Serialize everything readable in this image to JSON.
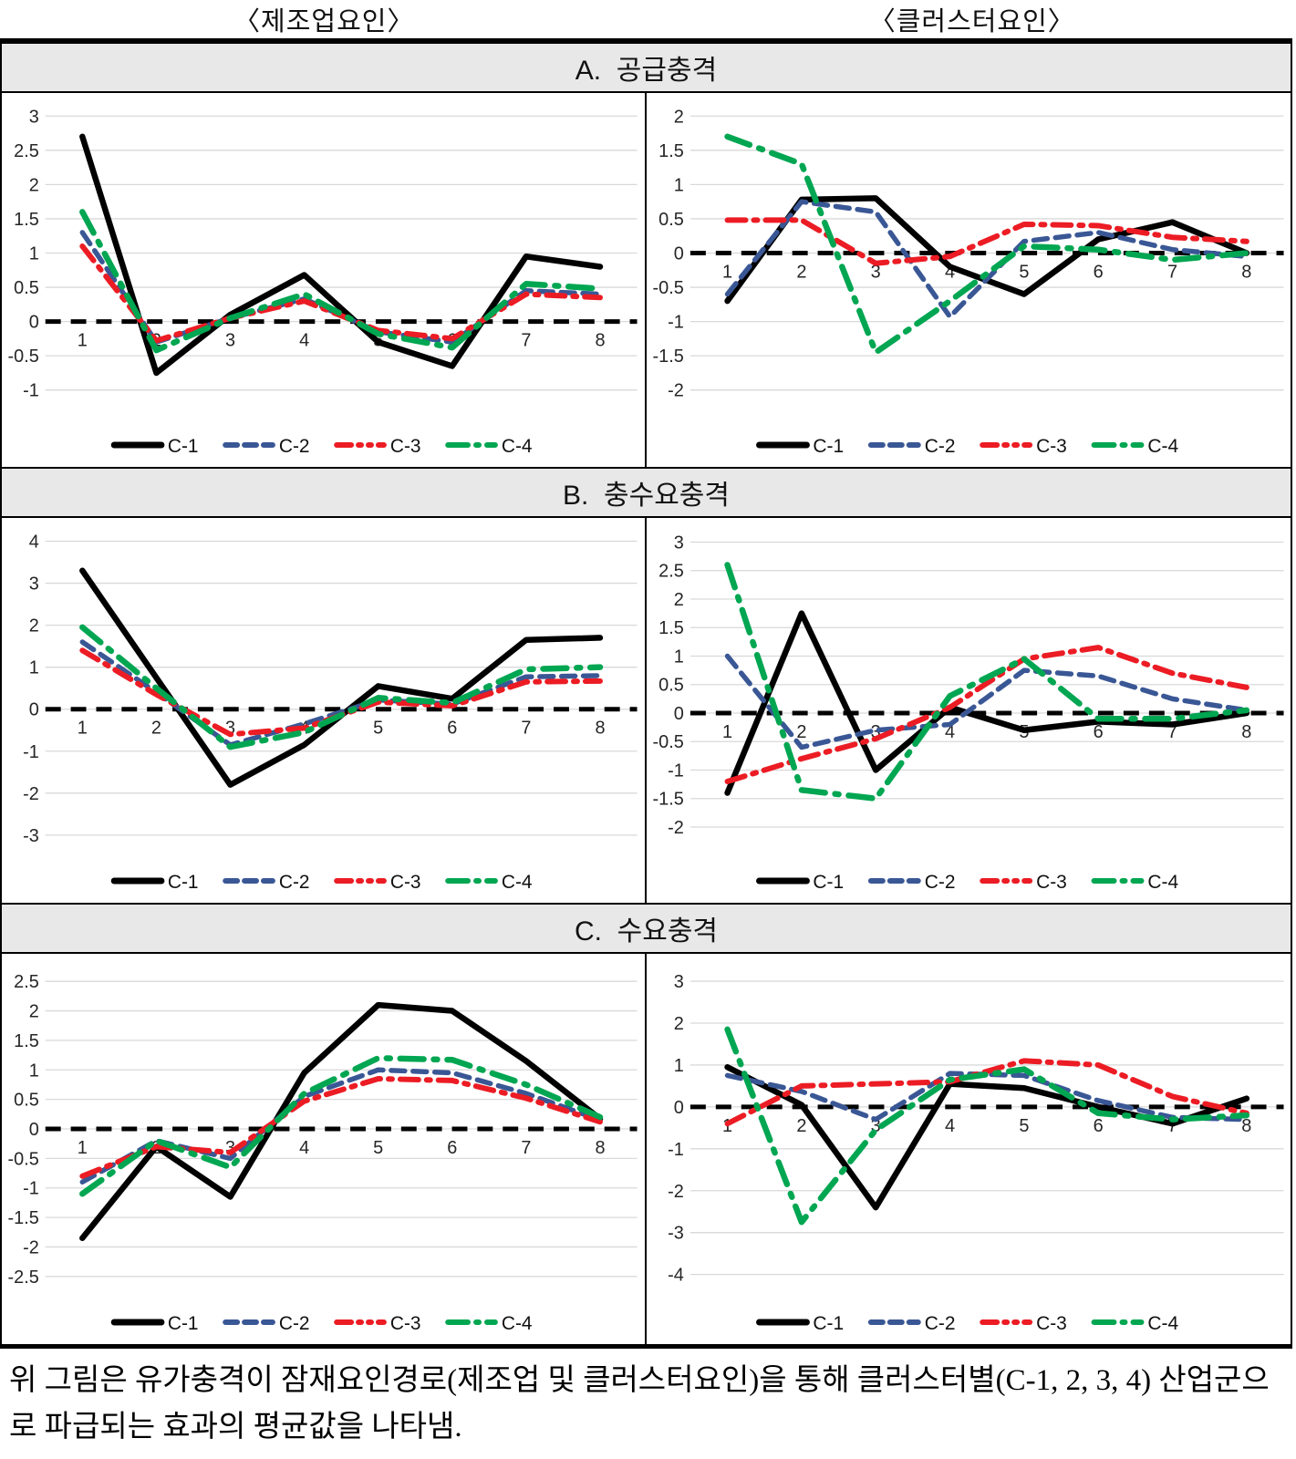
{
  "page": {
    "col_titles": [
      "〈제조업요인〉",
      "〈클러스터요인〉"
    ],
    "caption": "위 그림은 유가충격이 잠재요인경로(제조업 및 클러스터요인)을 통해 클러스터별(C-1, 2, 3, 4) 산업군으로 파급되는 효과의 평균값을 나타냄."
  },
  "style": {
    "series_colors": [
      "#000000",
      "#3A5795",
      "#EC1C24",
      "#00A651"
    ],
    "gridline_color": "#d9d9d9",
    "zero_line_color": "#000000",
    "header_bg": "#e8e8e8",
    "tick_color": "#262626"
  },
  "legend_labels": [
    "C-1",
    "C-2",
    "C-3",
    "C-4"
  ],
  "sections": [
    {
      "title": "A.  공급충격",
      "charts": [
        0,
        1
      ]
    },
    {
      "title": "B.  충수요충격",
      "charts": [
        2,
        3
      ]
    },
    {
      "title": "C.  수요충격",
      "charts": [
        4,
        5
      ]
    }
  ],
  "chart_data": [
    {
      "type": "line",
      "panel": "manufacturing-supply-shock",
      "title": "",
      "xlabel": "",
      "ylabel": "",
      "x": [
        1,
        2,
        3,
        4,
        5,
        6,
        7,
        8
      ],
      "yticks": [
        3,
        2.5,
        2,
        1.5,
        1,
        0.5,
        0,
        -0.5,
        -1
      ],
      "ylim": [
        -1.35,
        3.15
      ],
      "legend_position": "bottom",
      "grid": true,
      "series": [
        {
          "name": "C-1",
          "values": [
            2.7,
            -0.75,
            0.1,
            0.68,
            -0.3,
            -0.65,
            0.95,
            0.8
          ]
        },
        {
          "name": "C-2",
          "values": [
            1.3,
            -0.3,
            0.05,
            0.33,
            -0.15,
            -0.3,
            0.45,
            0.4
          ]
        },
        {
          "name": "C-3",
          "values": [
            1.1,
            -0.28,
            0.05,
            0.3,
            -0.13,
            -0.25,
            0.4,
            0.35
          ]
        },
        {
          "name": "C-4",
          "values": [
            1.6,
            -0.42,
            0.05,
            0.4,
            -0.18,
            -0.38,
            0.55,
            0.48
          ]
        }
      ]
    },
    {
      "type": "line",
      "panel": "cluster-supply-shock",
      "title": "",
      "xlabel": "",
      "ylabel": "",
      "x": [
        1,
        2,
        3,
        4,
        5,
        6,
        7,
        8
      ],
      "yticks": [
        2,
        1.5,
        1,
        0.5,
        0,
        -0.5,
        -1,
        -1.5,
        -2
      ],
      "ylim": [
        -2.35,
        2.15
      ],
      "legend_position": "bottom",
      "grid": true,
      "series": [
        {
          "name": "C-1",
          "values": [
            -0.7,
            0.78,
            0.8,
            -0.2,
            -0.6,
            0.2,
            0.45,
            0.0
          ]
        },
        {
          "name": "C-2",
          "values": [
            -0.6,
            0.75,
            0.6,
            -0.93,
            0.17,
            0.3,
            0.05,
            -0.05
          ]
        },
        {
          "name": "C-3",
          "values": [
            0.48,
            0.48,
            -0.15,
            -0.05,
            0.42,
            0.4,
            0.23,
            0.17
          ]
        },
        {
          "name": "C-4",
          "values": [
            1.7,
            1.3,
            -1.45,
            -0.7,
            0.1,
            0.05,
            -0.1,
            0.0
          ]
        }
      ]
    },
    {
      "type": "line",
      "panel": "manufacturing-aggregate-demand-shock",
      "title": "",
      "xlabel": "",
      "ylabel": "",
      "x": [
        1,
        2,
        3,
        4,
        5,
        6,
        7,
        8
      ],
      "yticks": [
        4,
        3,
        2,
        1,
        0,
        -1,
        -2,
        -3
      ],
      "ylim": [
        -3.35,
        4.25
      ],
      "legend_position": "bottom",
      "grid": true,
      "series": [
        {
          "name": "C-1",
          "values": [
            3.3,
            0.75,
            -1.8,
            -0.85,
            0.55,
            0.25,
            1.65,
            1.7
          ]
        },
        {
          "name": "C-2",
          "values": [
            1.6,
            0.4,
            -0.85,
            -0.35,
            0.22,
            0.12,
            0.77,
            0.8
          ]
        },
        {
          "name": "C-3",
          "values": [
            1.4,
            0.35,
            -0.6,
            -0.45,
            0.17,
            0.08,
            0.65,
            0.67
          ]
        },
        {
          "name": "C-4",
          "values": [
            1.95,
            0.5,
            -0.9,
            -0.55,
            0.27,
            0.15,
            0.95,
            1.0
          ]
        }
      ]
    },
    {
      "type": "line",
      "panel": "cluster-aggregate-demand-shock",
      "title": "",
      "xlabel": "",
      "ylabel": "",
      "x": [
        1,
        2,
        3,
        4,
        5,
        6,
        7,
        8
      ],
      "yticks": [
        3,
        2.5,
        2,
        1.5,
        1,
        0.5,
        0,
        -0.5,
        -1,
        -1.5,
        -2
      ],
      "ylim": [
        -2.4,
        3.2
      ],
      "legend_position": "bottom",
      "grid": true,
      "series": [
        {
          "name": "C-1",
          "values": [
            -1.4,
            1.75,
            -1.0,
            0.1,
            -0.3,
            -0.15,
            -0.2,
            0.0
          ]
        },
        {
          "name": "C-2",
          "values": [
            1.0,
            -0.6,
            -0.3,
            -0.2,
            0.75,
            0.65,
            0.25,
            0.05
          ]
        },
        {
          "name": "C-3",
          "values": [
            -1.2,
            -0.8,
            -0.45,
            0.1,
            0.95,
            1.15,
            0.7,
            0.45
          ]
        },
        {
          "name": "C-4",
          "values": [
            2.6,
            -1.35,
            -1.5,
            0.3,
            0.95,
            -0.1,
            -0.1,
            0.05
          ]
        }
      ]
    },
    {
      "type": "line",
      "panel": "manufacturing-demand-shock",
      "title": "",
      "xlabel": "",
      "ylabel": "",
      "x": [
        1,
        2,
        3,
        4,
        5,
        6,
        7,
        8
      ],
      "yticks": [
        2.5,
        2,
        1.5,
        1,
        0.5,
        0,
        -0.5,
        -1,
        -1.5,
        -2,
        -2.5
      ],
      "ylim": [
        -2.75,
        2.75
      ],
      "legend_position": "bottom",
      "grid": true,
      "series": [
        {
          "name": "C-1",
          "values": [
            -1.85,
            -0.3,
            -1.15,
            0.95,
            2.1,
            2.0,
            1.15,
            0.17
          ]
        },
        {
          "name": "C-2",
          "values": [
            -0.9,
            -0.2,
            -0.5,
            0.55,
            1.0,
            0.95,
            0.6,
            0.15
          ]
        },
        {
          "name": "C-3",
          "values": [
            -0.8,
            -0.3,
            -0.4,
            0.47,
            0.85,
            0.82,
            0.52,
            0.12
          ]
        },
        {
          "name": "C-4",
          "values": [
            -1.1,
            -0.2,
            -0.65,
            0.6,
            1.2,
            1.17,
            0.75,
            0.2
          ]
        }
      ]
    },
    {
      "type": "line",
      "panel": "cluster-demand-shock",
      "title": "",
      "xlabel": "",
      "ylabel": "",
      "x": [
        1,
        2,
        3,
        4,
        5,
        6,
        7,
        8
      ],
      "yticks": [
        3,
        2,
        1,
        0,
        -1,
        -2,
        -3,
        -4
      ],
      "ylim": [
        -4.4,
        3.35
      ],
      "legend_position": "bottom",
      "grid": true,
      "series": [
        {
          "name": "C-1",
          "values": [
            0.95,
            0.05,
            -2.4,
            0.55,
            0.45,
            0.0,
            -0.4,
            0.2
          ]
        },
        {
          "name": "C-2",
          "values": [
            0.75,
            0.37,
            -0.3,
            0.8,
            0.75,
            0.15,
            -0.25,
            -0.3
          ]
        },
        {
          "name": "C-3",
          "values": [
            -0.4,
            0.5,
            0.55,
            0.6,
            1.1,
            1.0,
            0.25,
            -0.15
          ]
        },
        {
          "name": "C-4",
          "values": [
            1.85,
            -2.75,
            -0.55,
            0.65,
            0.9,
            -0.15,
            -0.3,
            -0.2
          ]
        }
      ]
    }
  ]
}
